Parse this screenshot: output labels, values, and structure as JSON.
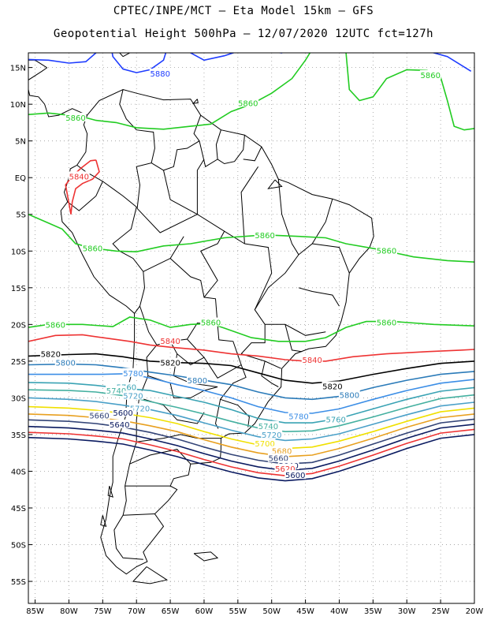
{
  "title_line1": "CPTEC/INPE/MCT –  Eta Model 15km – GFS",
  "title_line2": "Geopotential Height 500hPa – 12/07/2020 12UTC fct=127h",
  "lat_labels": [
    "15N",
    "10N",
    "5N",
    "EQ",
    "5S",
    "10S",
    "15S",
    "20S",
    "25S",
    "30S",
    "35S",
    "40S",
    "45S",
    "50S",
    "55S"
  ],
  "lon_labels": [
    "85W",
    "80W",
    "75W",
    "70W",
    "65W",
    "60W",
    "55W",
    "50W",
    "45W",
    "40W",
    "35W",
    "30W",
    "25W",
    "20W"
  ],
  "contours": [
    {
      "value": 5880,
      "color": "#1e3cff",
      "labels": [
        {
          "text": "5880",
          "lon": -66.5,
          "lat": 14.2
        }
      ]
    },
    {
      "value": 5860,
      "color": "#22cc22",
      "labels": [
        {
          "text": "5860",
          "lon": -26.5,
          "lat": 14.0
        },
        {
          "text": "5860",
          "lon": -53.5,
          "lat": 10.2
        },
        {
          "text": "5860",
          "lon": -79.0,
          "lat": 8.2
        },
        {
          "text": "5860",
          "lon": -51.0,
          "lat": -7.8
        },
        {
          "text": "5860",
          "lon": -76.5,
          "lat": -9.6
        },
        {
          "text": "5860",
          "lon": -33.0,
          "lat": -9.9
        },
        {
          "text": "5860",
          "lon": -59.0,
          "lat": -19.7
        },
        {
          "text": "5860",
          "lon": -82.0,
          "lat": -20.0
        },
        {
          "text": "5860",
          "lon": -33.0,
          "lat": -19.7
        }
      ]
    },
    {
      "value": 5840,
      "color": "#ee3333",
      "labels": [
        {
          "text": "5840",
          "lon": -78.5,
          "lat": 0.2
        },
        {
          "text": "5840",
          "lon": -65.0,
          "lat": -22.2
        },
        {
          "text": "5840",
          "lon": -44.0,
          "lat": -24.8
        }
      ]
    },
    {
      "value": 5820,
      "color": "#000000",
      "labels": [
        {
          "text": "5820",
          "lon": -82.7,
          "lat": -24.0
        },
        {
          "text": "5820",
          "lon": -65.0,
          "lat": -25.2
        },
        {
          "text": "5820",
          "lon": -41.0,
          "lat": -28.4
        }
      ]
    },
    {
      "value": 5800,
      "color": "#2b7bb9",
      "labels": [
        {
          "text": "5800",
          "lon": -80.5,
          "lat": -25.2
        },
        {
          "text": "5800",
          "lon": -61.0,
          "lat": -27.6
        },
        {
          "text": "5800",
          "lon": -38.5,
          "lat": -29.6
        }
      ]
    },
    {
      "value": 5780,
      "color": "#3c8ee6",
      "labels": [
        {
          "text": "5780",
          "lon": -70.5,
          "lat": -26.6
        },
        {
          "text": "5780",
          "lon": -46.0,
          "lat": -32.5
        }
      ]
    },
    {
      "value": 5760,
      "color": "#3aa3b4",
      "labels": [
        {
          "text": "5760",
          "lon": -71.5,
          "lat": -28.5
        },
        {
          "text": "5760",
          "lon": -40.5,
          "lat": -32.9
        }
      ]
    },
    {
      "value": 5740,
      "color": "#44b0a0",
      "labels": [
        {
          "text": "5740",
          "lon": -73.0,
          "lat": -29.0
        },
        {
          "text": "5740",
          "lon": -50.5,
          "lat": -33.8
        }
      ]
    },
    {
      "value": 5720,
      "color": "#4aa0c8",
      "labels": [
        {
          "text": "5720",
          "lon": -70.5,
          "lat": -29.7
        },
        {
          "text": "5720",
          "lon": -69.5,
          "lat": -31.4
        },
        {
          "text": "5720",
          "lon": -50.0,
          "lat": -35.0
        }
      ]
    },
    {
      "value": 5700,
      "color": "#f0e000",
      "labels": [
        {
          "text": "5700",
          "lon": -51.0,
          "lat": -36.2
        }
      ]
    },
    {
      "value": 5680,
      "color": "#e8a020",
      "labels": [
        {
          "text": "5680",
          "lon": -48.5,
          "lat": -37.2
        }
      ]
    },
    {
      "value": 5660,
      "color": "#334477",
      "labels": [
        {
          "text": "5660",
          "lon": -75.5,
          "lat": -32.4
        },
        {
          "text": "5660",
          "lon": -49.0,
          "lat": -38.2
        }
      ]
    },
    {
      "value": 5640,
      "color": "#0a1a60",
      "labels": [
        {
          "text": "5640",
          "lon": -72.5,
          "lat": -33.6
        },
        {
          "text": "5640",
          "lon": -47.5,
          "lat": -39.2
        }
      ]
    },
    {
      "value": 5620,
      "color": "#ee3333",
      "labels": [
        {
          "text": "5620",
          "lon": -48.0,
          "lat": -39.6
        }
      ]
    },
    {
      "value": 5600,
      "color": "#0a1a60",
      "labels": [
        {
          "text": "5600",
          "lon": -72.0,
          "lat": -32.0
        },
        {
          "text": "5600",
          "lon": -46.5,
          "lat": -40.5
        }
      ]
    }
  ]
}
